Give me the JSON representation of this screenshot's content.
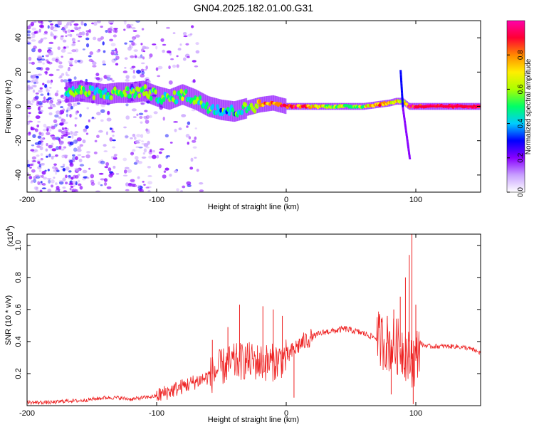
{
  "title": "GN04.2025.182.01.00.G31",
  "chart_data": [
    {
      "type": "heatmap",
      "xlabel": "Height of straight line (km)",
      "ylabel": "Frequency (Hz)",
      "xlim": [
        -200,
        150
      ],
      "ylim": [
        -50,
        50
      ],
      "x_ticks": [
        -200,
        -100,
        0,
        100
      ],
      "y_ticks": [
        -40,
        -20,
        0,
        20,
        40
      ],
      "x_tick_labels": [
        "-200",
        "-100",
        "0",
        "100"
      ],
      "y_tick_labels": [
        "-40",
        "-20",
        "0",
        "20",
        "40"
      ],
      "colorbar": {
        "label": "Normalized spectral amplitude",
        "range": [
          0,
          1
        ],
        "ticks": [
          0.0,
          0.2,
          0.4,
          0.6,
          0.8
        ],
        "tick_labels": [
          "0.0",
          "0.2",
          "0.4",
          "0.6",
          "0.8"
        ],
        "colormap": [
          "#ffffff",
          "#c8a0ff",
          "#8800ff",
          "#0000ff",
          "#00ccff",
          "#00ff66",
          "#aaff00",
          "#ffee00",
          "#ff8800",
          "#ff0033",
          "#ff00aa"
        ]
      },
      "ridge": {
        "x": [
          -170,
          -160,
          -150,
          -140,
          -130,
          -120,
          -110,
          -100,
          -90,
          -80,
          -70,
          -60,
          -50,
          -40,
          -30,
          -20,
          -10,
          0,
          10,
          20,
          30,
          40,
          50,
          60,
          70,
          80,
          85,
          90,
          95,
          100,
          110,
          120,
          130,
          140,
          150
        ],
        "y": [
          8,
          9,
          8,
          7,
          8,
          8,
          9,
          6,
          4,
          7,
          4,
          0,
          -2,
          -3,
          -1,
          1,
          2,
          0,
          0,
          0,
          0,
          0,
          0,
          0,
          1,
          2,
          3,
          3,
          0,
          0,
          0,
          0,
          0,
          0,
          0
        ],
        "amplitude": [
          0.5,
          0.55,
          0.5,
          0.45,
          0.5,
          0.55,
          0.55,
          0.5,
          0.5,
          0.55,
          0.5,
          0.5,
          0.45,
          0.45,
          0.5,
          0.75,
          0.85,
          0.9,
          0.85,
          0.7,
          0.6,
          0.6,
          0.55,
          0.6,
          0.85,
          0.7,
          0.75,
          0.6,
          0.9,
          0.95,
          0.95,
          0.95,
          0.95,
          0.95,
          0.95
        ]
      },
      "spike": {
        "x": 90,
        "y_range": [
          -30,
          22
        ]
      }
    },
    {
      "type": "line",
      "xlabel": "Height of straight line (km)",
      "ylabel": "SNR (10 * v/v)",
      "y_multiplier_label": "(x10",
      "y_multiplier_exp": "4",
      "y_multiplier_close": ")",
      "xlim": [
        -200,
        150
      ],
      "ylim": [
        0,
        1.07
      ],
      "x_ticks": [
        -200,
        -100,
        0,
        100
      ],
      "y_ticks": [
        0.2,
        0.4,
        0.6,
        0.8,
        1.0
      ],
      "x_tick_labels": [
        "-200",
        "-100",
        "0",
        "100"
      ],
      "y_tick_labels": [
        "0.2",
        "0.4",
        "0.6",
        "0.8",
        "1.0"
      ],
      "color": "#ee2222",
      "series": [
        {
          "x": [
            -200,
            -190,
            -180,
            -170,
            -160,
            -150,
            -140,
            -130,
            -120,
            -110,
            -100,
            -90,
            -80,
            -70,
            -60,
            -50,
            -40,
            -30,
            -20,
            -10,
            0,
            10,
            20,
            30,
            40,
            45,
            50,
            60,
            70,
            80,
            90,
            95,
            100,
            103,
            105,
            110,
            120,
            130,
            140,
            150
          ],
          "y": [
            0.02,
            0.02,
            0.02,
            0.03,
            0.03,
            0.04,
            0.05,
            0.05,
            0.04,
            0.05,
            0.06,
            0.09,
            0.12,
            0.15,
            0.18,
            0.24,
            0.27,
            0.28,
            0.27,
            0.27,
            0.3,
            0.38,
            0.43,
            0.46,
            0.47,
            0.48,
            0.47,
            0.45,
            0.42,
            0.38,
            0.36,
            0.3,
            0.28,
            0.4,
            0.38,
            0.37,
            0.37,
            0.37,
            0.36,
            0.33
          ]
        }
      ],
      "peaks": [
        {
          "x": -57,
          "y": 0.41
        },
        {
          "x": -45,
          "y": 0.49
        },
        {
          "x": -36,
          "y": 0.63
        },
        {
          "x": -18,
          "y": 0.62
        },
        {
          "x": -10,
          "y": 0.6
        },
        {
          "x": -3,
          "y": 0.56
        },
        {
          "x": 78,
          "y": 0.56
        },
        {
          "x": 83,
          "y": 0.6
        },
        {
          "x": 88,
          "y": 0.68
        },
        {
          "x": 92,
          "y": 0.8
        },
        {
          "x": 95,
          "y": 0.94
        },
        {
          "x": 97,
          "y": 1.07
        },
        {
          "x": 100,
          "y": 0.63
        }
      ],
      "dips": [
        {
          "x": 6,
          "y": 0.05
        },
        {
          "x": 81,
          "y": 0.07
        },
        {
          "x": 98,
          "y": 0.01
        }
      ]
    }
  ]
}
